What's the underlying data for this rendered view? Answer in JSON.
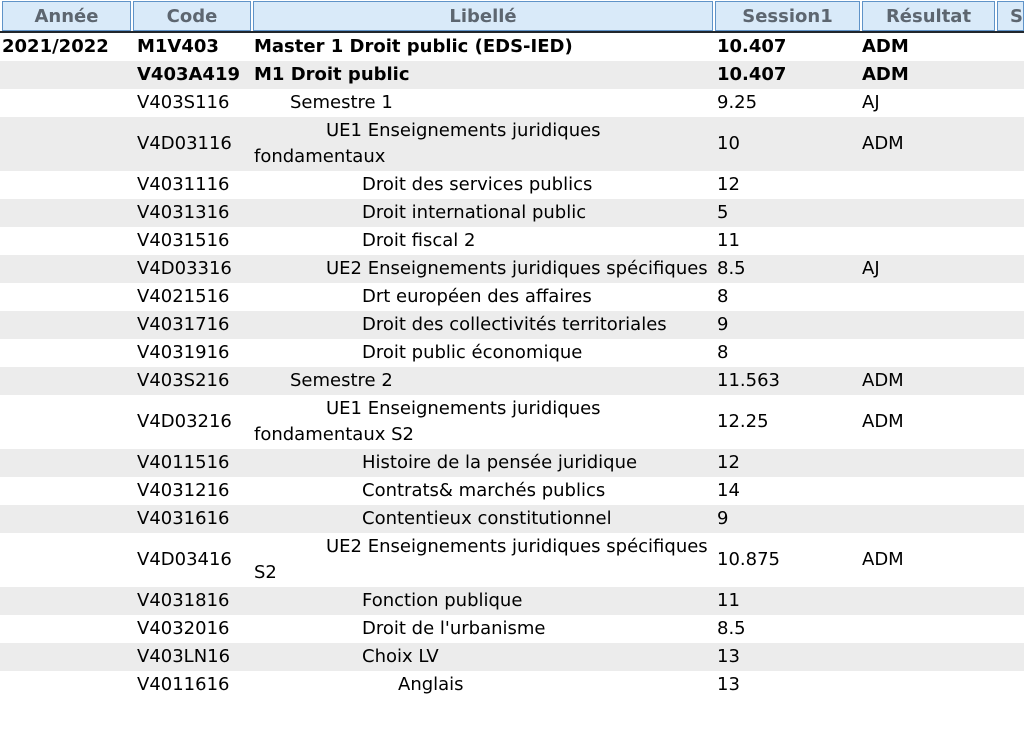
{
  "colors": {
    "header_bg": "#d9eaf9",
    "header_border": "#5f93c8",
    "header_text": "#5d6670",
    "header_bottom_rule": "#20262c",
    "row_stripe": "#ececec",
    "body_text": "#000000"
  },
  "table": {
    "columns": [
      {
        "key": "annee",
        "label": "Année"
      },
      {
        "key": "code",
        "label": "Code"
      },
      {
        "key": "libelle",
        "label": "Libellé"
      },
      {
        "key": "session1",
        "label": "Session1"
      },
      {
        "key": "resultat",
        "label": "Résultat"
      },
      {
        "key": "session2",
        "label": "S"
      }
    ],
    "rows": [
      {
        "annee": "2021/2022",
        "code": "M1V403",
        "libelle": "Master 1 Droit public (EDS-IED)",
        "level": 0,
        "session1": "10.407",
        "resultat": "ADM",
        "bold": true
      },
      {
        "annee": "",
        "code": "V403A419",
        "libelle": "M1 Droit public",
        "level": 0,
        "session1": "10.407",
        "resultat": "ADM",
        "bold": true
      },
      {
        "annee": "",
        "code": "V403S116",
        "libelle": "Semestre 1",
        "level": 1,
        "session1": "9.25",
        "resultat": "AJ",
        "bold": false
      },
      {
        "annee": "",
        "code": "V4D03116",
        "libelle": "UE1 Enseignements juridiques fondamentaux",
        "level": 2,
        "session1": "10",
        "resultat": "ADM",
        "bold": false
      },
      {
        "annee": "",
        "code": "V4031116",
        "libelle": "Droit des services publics",
        "level": 3,
        "session1": "12",
        "resultat": "",
        "bold": false
      },
      {
        "annee": "",
        "code": "V4031316",
        "libelle": "Droit international public",
        "level": 3,
        "session1": "5",
        "resultat": "",
        "bold": false
      },
      {
        "annee": "",
        "code": "V4031516",
        "libelle": "Droit fiscal 2",
        "level": 3,
        "session1": "11",
        "resultat": "",
        "bold": false
      },
      {
        "annee": "",
        "code": "V4D03316",
        "libelle": "UE2 Enseignements juridiques spécifiques",
        "level": 2,
        "session1": "8.5",
        "resultat": "AJ",
        "bold": false
      },
      {
        "annee": "",
        "code": "V4021516",
        "libelle": "Drt européen des affaires",
        "level": 3,
        "session1": "8",
        "resultat": "",
        "bold": false
      },
      {
        "annee": "",
        "code": "V4031716",
        "libelle": "Droit des collectivités territoriales",
        "level": 3,
        "session1": "9",
        "resultat": "",
        "bold": false
      },
      {
        "annee": "",
        "code": "V4031916",
        "libelle": "Droit public économique",
        "level": 3,
        "session1": "8",
        "resultat": "",
        "bold": false
      },
      {
        "annee": "",
        "code": "V403S216",
        "libelle": "Semestre 2",
        "level": 1,
        "session1": "11.563",
        "resultat": "ADM",
        "bold": false
      },
      {
        "annee": "",
        "code": "V4D03216",
        "libelle": "UE1 Enseignements juridiques fondamentaux S2",
        "level": 2,
        "session1": "12.25",
        "resultat": "ADM",
        "bold": false
      },
      {
        "annee": "",
        "code": "V4011516",
        "libelle": "Histoire de la pensée juridique",
        "level": 3,
        "session1": "12",
        "resultat": "",
        "bold": false
      },
      {
        "annee": "",
        "code": "V4031216",
        "libelle": "Contrats& marchés publics",
        "level": 3,
        "session1": "14",
        "resultat": "",
        "bold": false
      },
      {
        "annee": "",
        "code": "V4031616",
        "libelle": "Contentieux constitutionnel",
        "level": 3,
        "session1": "9",
        "resultat": "",
        "bold": false
      },
      {
        "annee": "",
        "code": "V4D03416",
        "libelle": "UE2 Enseignements juridiques spécifiques S2",
        "level": 2,
        "session1": "10.875",
        "resultat": "ADM",
        "bold": false
      },
      {
        "annee": "",
        "code": "V4031816",
        "libelle": "Fonction publique",
        "level": 3,
        "session1": "11",
        "resultat": "",
        "bold": false
      },
      {
        "annee": "",
        "code": "V4032016",
        "libelle": "Droit de l'urbanisme",
        "level": 3,
        "session1": "8.5",
        "resultat": "",
        "bold": false
      },
      {
        "annee": "",
        "code": "V403LN16",
        "libelle": "Choix LV",
        "level": 3,
        "session1": "13",
        "resultat": "",
        "bold": false
      },
      {
        "annee": "",
        "code": "V4011616",
        "libelle": "Anglais",
        "level": 4,
        "session1": "13",
        "resultat": "",
        "bold": false
      }
    ]
  }
}
